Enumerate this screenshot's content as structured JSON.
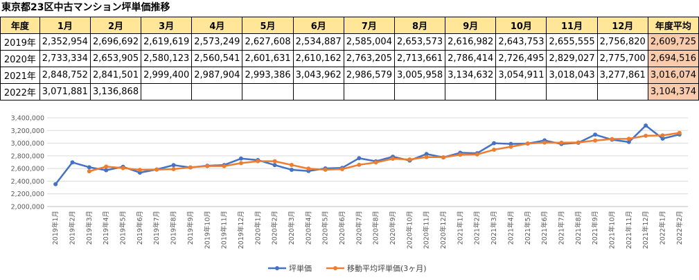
{
  "title": "東京都23区中古マンション坪単価推移",
  "table": {
    "header": [
      "年度",
      "1月",
      "2月",
      "3月",
      "4月",
      "5月",
      "6月",
      "7月",
      "8月",
      "9月",
      "10月",
      "11月",
      "12月",
      "年度平均"
    ],
    "rows": [
      {
        "year": "2019年",
        "months": [
          "2,352,954",
          "2,696,692",
          "2,619,619",
          "2,573,249",
          "2,627,608",
          "2,534,887",
          "2,585,004",
          "2,653,573",
          "2,616,982",
          "2,643,753",
          "2,655,555",
          "2,756,820"
        ],
        "avg": "2,609,725"
      },
      {
        "year": "2020年",
        "months": [
          "2,733,334",
          "2,653,905",
          "2,580,123",
          "2,560,541",
          "2,601,631",
          "2,610,162",
          "2,763,205",
          "2,713,661",
          "2,786,414",
          "2,726,495",
          "2,829,027",
          "2,775,700"
        ],
        "avg": "2,694,516"
      },
      {
        "year": "2021年",
        "months": [
          "2,848,752",
          "2,841,501",
          "2,999,400",
          "2,987,904",
          "2,993,386",
          "3,043,962",
          "2,986,579",
          "3,005,958",
          "3,134,632",
          "3,054,911",
          "3,018,043",
          "3,277,861"
        ],
        "avg": "3,016,074"
      },
      {
        "year": "2022年",
        "months": [
          "3,071,881",
          "3,136,868",
          "",
          "",
          "",
          "",
          "",
          "",
          "",
          "",
          "",
          ""
        ],
        "avg": "3,104,374"
      }
    ]
  },
  "colors": {
    "series1": "#4472c4",
    "series2": "#ed7d31",
    "header_bg": "#ffe699",
    "avg_bg": "#f8cbad",
    "grid": "#d9d9d9"
  },
  "chart_data": {
    "type": "line",
    "title": "",
    "xlabel": "",
    "ylabel": "",
    "ylim": [
      2000000,
      3400000
    ],
    "y_ticks": [
      "2,000,000",
      "2,200,000",
      "2,400,000",
      "2,600,000",
      "2,800,000",
      "3,000,000",
      "3,200,000",
      "3,400,000"
    ],
    "grid": true,
    "legend_position": "bottom",
    "x": [
      "2019年1月",
      "2019年2月",
      "2019年3月",
      "2019年4月",
      "2019年5月",
      "2019年6月",
      "2019年7月",
      "2019年8月",
      "2019年9月",
      "2019年10月",
      "2019年11月",
      "2019年12月",
      "2020年1月",
      "2020年2月",
      "2020年3月",
      "2020年4月",
      "2020年5月",
      "2020年6月",
      "2020年7月",
      "2020年8月",
      "2020年9月",
      "2020年10月",
      "2020年11月",
      "2020年12月",
      "2021年1月",
      "2021年2月",
      "2021年3月",
      "2021年4月",
      "2021年5月",
      "2021年6月",
      "2021年7月",
      "2021年8月",
      "2021年9月",
      "2021年10月",
      "2021年11月",
      "2021年12月",
      "2022年1月",
      "2022年2月"
    ],
    "series": [
      {
        "name": "坪単価",
        "values": [
          2352954,
          2696692,
          2619619,
          2573249,
          2627608,
          2534887,
          2585004,
          2653573,
          2616982,
          2643753,
          2655555,
          2756820,
          2733334,
          2653905,
          2580123,
          2560541,
          2601631,
          2610162,
          2763205,
          2713661,
          2786414,
          2726495,
          2829027,
          2775700,
          2848752,
          2841501,
          2999400,
          2987904,
          2993386,
          3043962,
          2986579,
          3005958,
          3134632,
          3054911,
          3018043,
          3277861,
          3071881,
          3136868
        ]
      },
      {
        "name": "移動平均坪単価(3ヶ月)",
        "values": [
          null,
          null,
          2556422,
          2629853,
          2606825,
          2578581,
          2582500,
          2591155,
          2618520,
          2638103,
          2638763,
          2685376,
          2715236,
          2714686,
          2655787,
          2598190,
          2580765,
          2590778,
          2658333,
          2695676,
          2754427,
          2742190,
          2780645,
          2777074,
          2817826,
          2821984,
          2896551,
          2942935,
          2993563,
          3008417,
          3007976,
          3012166,
          3042390,
          3065167,
          3069195,
          3116938,
          3122595,
          3162203
        ]
      }
    ]
  }
}
